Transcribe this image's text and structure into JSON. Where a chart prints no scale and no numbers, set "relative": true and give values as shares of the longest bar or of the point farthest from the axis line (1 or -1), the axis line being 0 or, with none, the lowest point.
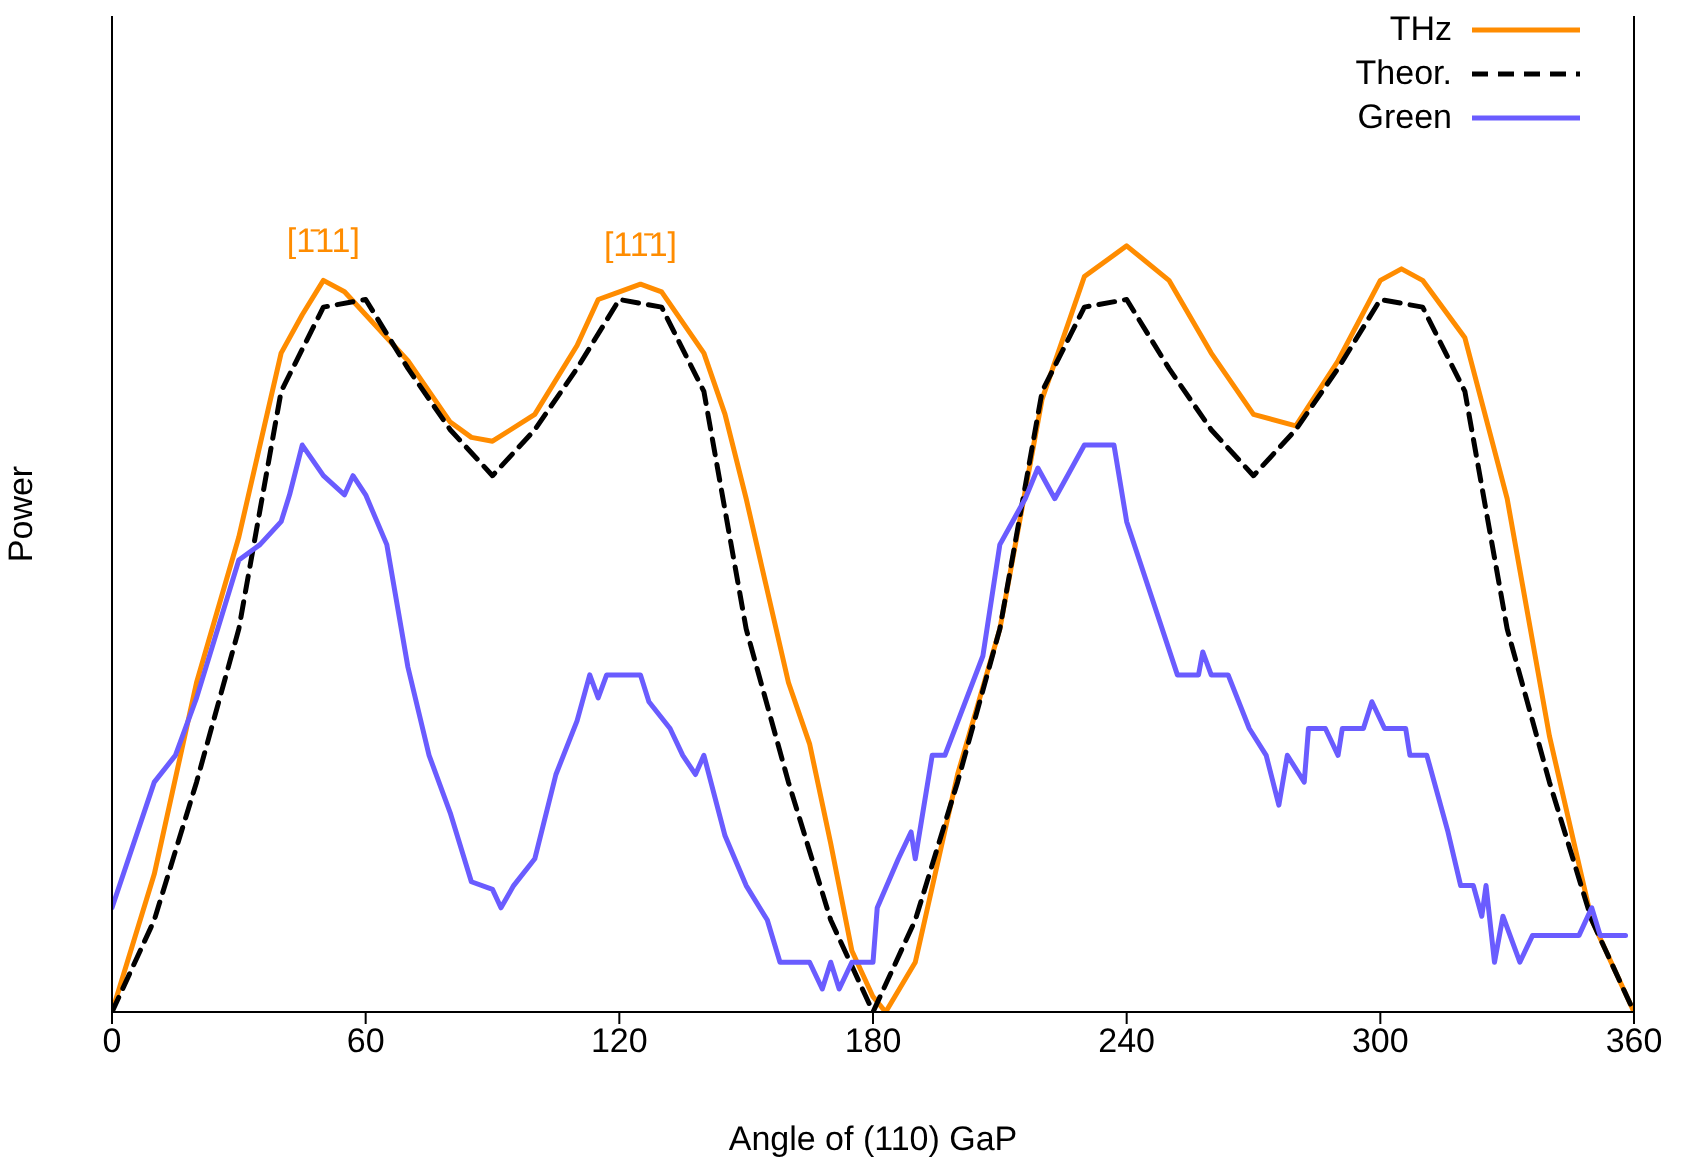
{
  "chart_data": {
    "type": "line",
    "relative": true,
    "xlabel": "Angle of (110) GaP",
    "ylabel": "Power",
    "xlim": [
      0,
      360
    ],
    "xticks": [
      0,
      60,
      120,
      180,
      240,
      300,
      360
    ],
    "legend": "top right",
    "marker": "none",
    "annotations": [
      "[1̄11]",
      "[11̄1]"
    ],
    "series": [
      {
        "name": "THz",
        "color": "#ff8c00",
        "line_style": "solid",
        "x": [
          0,
          10,
          20,
          30,
          40,
          45,
          50,
          55,
          60,
          70,
          80,
          85,
          90,
          100,
          110,
          115,
          120,
          125,
          130,
          140,
          145,
          150,
          160,
          165,
          170,
          175,
          180,
          183,
          190,
          200,
          210,
          220,
          230,
          240,
          250,
          260,
          270,
          280,
          290,
          300,
          305,
          310,
          320,
          330,
          340,
          350,
          360
        ],
        "values": [
          0,
          0.18,
          0.43,
          0.62,
          0.86,
          0.91,
          0.955,
          0.94,
          0.91,
          0.85,
          0.77,
          0.75,
          0.745,
          0.78,
          0.87,
          0.93,
          0.94,
          0.95,
          0.94,
          0.86,
          0.78,
          0.67,
          0.43,
          0.35,
          0.22,
          0.08,
          0.02,
          0,
          0.065,
          0.31,
          0.5,
          0.8,
          0.96,
          1,
          0.955,
          0.86,
          0.78,
          0.765,
          0.85,
          0.955,
          0.97,
          0.955,
          0.88,
          0.67,
          0.36,
          0.12,
          0
        ]
      },
      {
        "name": "Theor.",
        "color": "#000000",
        "line_style": "dashed",
        "x": [
          0,
          10,
          20,
          30,
          40,
          50,
          60,
          70,
          80,
          90,
          100,
          110,
          120,
          130,
          140,
          150,
          160,
          170,
          180,
          190,
          200,
          210,
          220,
          230,
          240,
          250,
          260,
          270,
          280,
          290,
          300,
          310,
          320,
          330,
          340,
          350,
          360
        ],
        "values": [
          0,
          0.12,
          0.3,
          0.5,
          0.81,
          0.92,
          0.93,
          0.84,
          0.76,
          0.7,
          0.76,
          0.84,
          0.93,
          0.92,
          0.81,
          0.5,
          0.3,
          0.12,
          0,
          0.12,
          0.3,
          0.5,
          0.81,
          0.92,
          0.93,
          0.84,
          0.76,
          0.7,
          0.76,
          0.84,
          0.93,
          0.92,
          0.81,
          0.5,
          0.3,
          0.12,
          0
        ]
      },
      {
        "name": "Green",
        "color": "#6a5cff",
        "line_style": "solid",
        "x": [
          0,
          10,
          15,
          20,
          25,
          30,
          35,
          40,
          42,
          45,
          50,
          55,
          57,
          60,
          65,
          70,
          75,
          80,
          85,
          90,
          92,
          95,
          100,
          105,
          110,
          113,
          115,
          117,
          125,
          127,
          132,
          135,
          138,
          140,
          145,
          150,
          155,
          158,
          165,
          168,
          170,
          172,
          175,
          180,
          181,
          186,
          189,
          190,
          194,
          197,
          206,
          210,
          216,
          219,
          223,
          226,
          230,
          237,
          240,
          252,
          257,
          258,
          260,
          264,
          269,
          273,
          276,
          278,
          282,
          283,
          287,
          290,
          291,
          296,
          298,
          301,
          306,
          307,
          311,
          316,
          319,
          322,
          324,
          325,
          327,
          329,
          333,
          336,
          347,
          350,
          352,
          358
        ],
        "values": [
          0.136,
          0.3,
          0.335,
          0.41,
          0.5,
          0.59,
          0.61,
          0.64,
          0.675,
          0.74,
          0.7,
          0.675,
          0.7,
          0.675,
          0.61,
          0.45,
          0.335,
          0.26,
          0.17,
          0.16,
          0.136,
          0.165,
          0.2,
          0.31,
          0.38,
          0.44,
          0.41,
          0.44,
          0.44,
          0.405,
          0.37,
          0.335,
          0.31,
          0.335,
          0.23,
          0.165,
          0.12,
          0.065,
          0.065,
          0.03,
          0.065,
          0.03,
          0.065,
          0.065,
          0.136,
          0.2,
          0.235,
          0.2,
          0.335,
          0.335,
          0.465,
          0.61,
          0.67,
          0.71,
          0.67,
          0.7,
          0.74,
          0.74,
          0.64,
          0.44,
          0.44,
          0.47,
          0.44,
          0.44,
          0.37,
          0.335,
          0.27,
          0.335,
          0.3,
          0.37,
          0.37,
          0.335,
          0.37,
          0.37,
          0.405,
          0.37,
          0.37,
          0.335,
          0.335,
          0.235,
          0.165,
          0.165,
          0.125,
          0.165,
          0.065,
          0.125,
          0.065,
          0.1,
          0.1,
          0.136,
          0.1,
          0.1
        ]
      }
    ]
  }
}
